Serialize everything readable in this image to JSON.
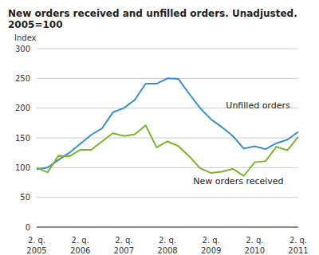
{
  "chart_data": {
    "type": "line",
    "title": "New orders received and unfilled orders. Unadjusted. 2005=100",
    "y_label": "Index",
    "categories": [
      "2. q.\n2005",
      null,
      null,
      null,
      "2. q.\n2006",
      null,
      null,
      null,
      "2. q.\n2007",
      null,
      null,
      null,
      "2. q.\n2008",
      null,
      null,
      null,
      "2. q.\n2009",
      null,
      null,
      null,
      "2. q.\n2010",
      null,
      null,
      null,
      "2. q.\n2011"
    ],
    "series": [
      {
        "name": "Unfilled orders",
        "color": "#3a8fc7",
        "values": [
          97,
          100,
          113,
          125,
          140,
          155,
          166,
          193,
          200,
          214,
          241,
          241,
          250,
          249,
          224,
          200,
          181,
          168,
          153,
          132,
          136,
          131,
          141,
          147,
          160
        ]
      },
      {
        "name": "New orders received",
        "color": "#7ab32e",
        "values": [
          100,
          92,
          120,
          119,
          130,
          130,
          144,
          158,
          153,
          156,
          171,
          134,
          144,
          136,
          119,
          99,
          91,
          93,
          98,
          86,
          109,
          111,
          135,
          129,
          152
        ]
      }
    ],
    "ylim": [
      0,
      300
    ],
    "yticks": [
      0,
      50,
      100,
      150,
      200,
      250,
      300
    ],
    "grid": true
  }
}
